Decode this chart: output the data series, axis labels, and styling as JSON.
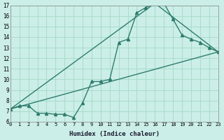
{
  "xlabel": "Humidex (Indice chaleur)",
  "xlim": [
    0,
    23
  ],
  "ylim": [
    6,
    17
  ],
  "xticks": [
    0,
    1,
    2,
    3,
    4,
    5,
    6,
    7,
    8,
    9,
    10,
    11,
    12,
    13,
    14,
    15,
    16,
    17,
    18,
    19,
    20,
    21,
    22,
    23
  ],
  "yticks": [
    6,
    7,
    8,
    9,
    10,
    11,
    12,
    13,
    14,
    15,
    16,
    17
  ],
  "bg_color": "#cceee8",
  "grid_color": "#aaddcc",
  "line_color": "#2e7d6e",
  "line1_x": [
    0,
    1,
    2,
    3,
    4,
    5,
    6,
    7,
    8,
    9,
    10,
    11,
    12,
    13,
    14,
    15,
    16,
    17,
    18,
    19,
    20,
    21,
    22,
    23
  ],
  "line1_y": [
    7.2,
    7.5,
    7.5,
    6.8,
    6.8,
    6.7,
    6.7,
    6.4,
    7.8,
    9.8,
    9.8,
    10.0,
    13.5,
    13.8,
    16.3,
    16.8,
    17.2,
    17.2,
    15.7,
    14.2,
    13.8,
    13.5,
    13.0,
    12.6
  ],
  "line2_x": [
    0,
    23
  ],
  "line2_y": [
    7.2,
    12.6
  ],
  "line3_x": [
    0,
    16,
    23
  ],
  "line3_y": [
    7.2,
    17.2,
    12.6
  ]
}
